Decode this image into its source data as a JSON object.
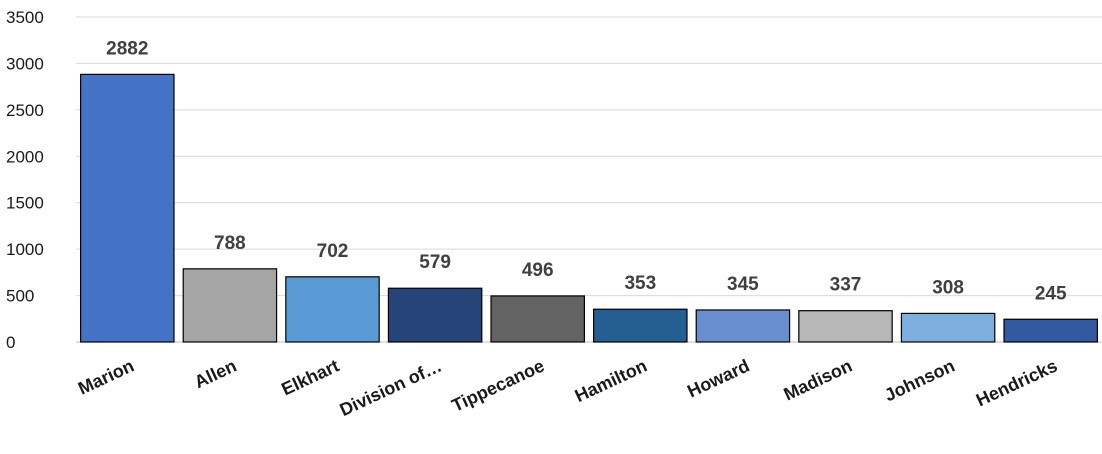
{
  "chart_data": {
    "type": "bar",
    "title": "",
    "xlabel": "",
    "ylabel": "",
    "ylim": [
      0,
      3500
    ],
    "yticks": [
      0,
      500,
      1000,
      1500,
      2000,
      2500,
      3000,
      3500
    ],
    "grid": true,
    "legend": "none",
    "categories": [
      "Marion",
      "Allen",
      "Elkhart",
      "Division of…",
      "Tippecanoe",
      "Hamilton",
      "Howard",
      "Madison",
      "Johnson",
      "Hendricks"
    ],
    "values": [
      2882,
      788,
      702,
      579,
      496,
      353,
      345,
      337,
      308,
      245
    ],
    "colors": [
      "#4472C4",
      "#A5A5A5",
      "#5B9BD5",
      "#264478",
      "#636363",
      "#255E91",
      "#698ED0",
      "#B7B7B7",
      "#7CAFDD",
      "#335AA1"
    ]
  }
}
